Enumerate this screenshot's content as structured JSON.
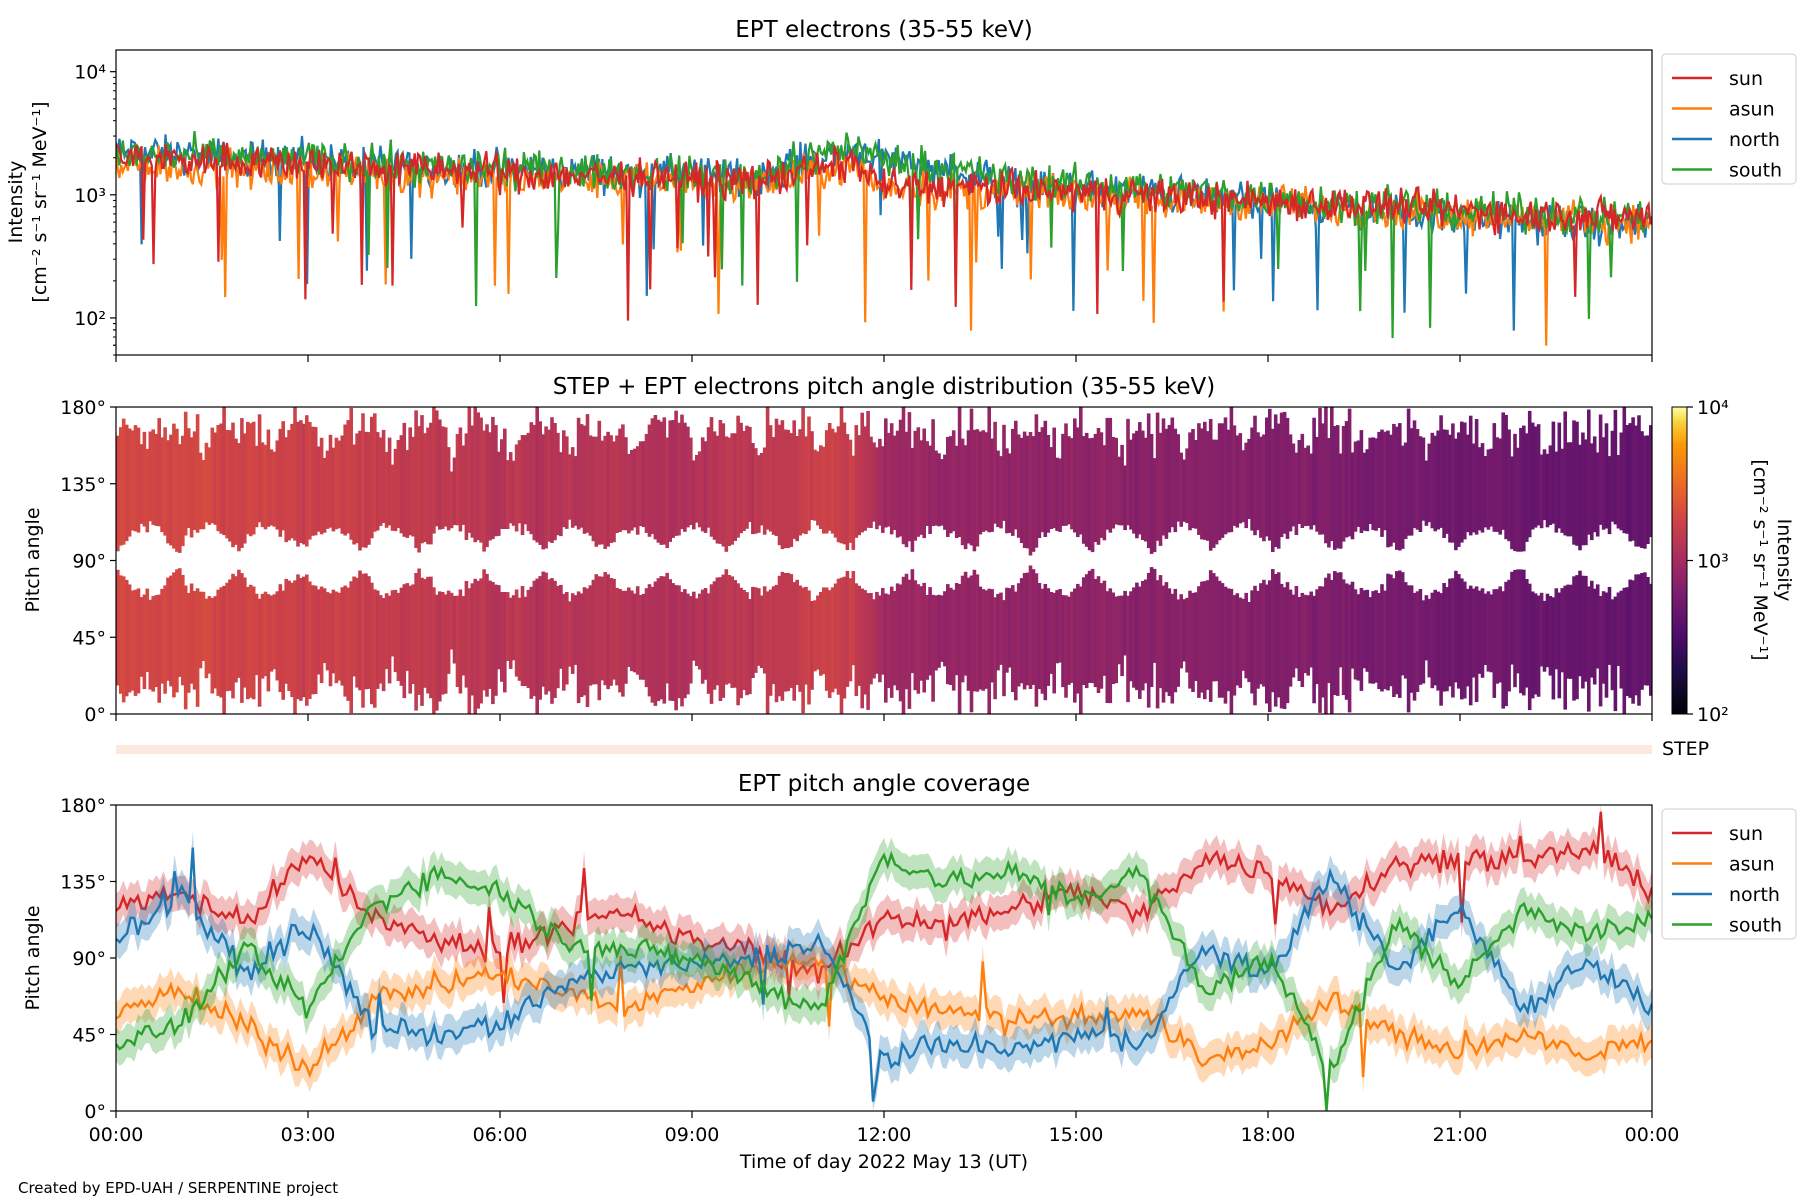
{
  "figure": {
    "credit": "Created by EPD-UAH / SERPENTINE project"
  },
  "chart_data": [
    {
      "type": "line",
      "title": "EPT electrons (35-55 keV)",
      "ylabel_line1": "Intensity",
      "ylabel_line2": "[cm⁻² s⁻¹ sr⁻¹ MeV⁻¹]",
      "yscale": "log",
      "ylim": [
        50,
        15000
      ],
      "yticks": [
        {
          "value": 100,
          "label": "10²"
        },
        {
          "value": 1000,
          "label": "10³"
        },
        {
          "value": 10000,
          "label": "10⁴"
        }
      ],
      "xlim": [
        "2022-05-13T00:00",
        "2022-05-14T00:00"
      ],
      "legend": "outside-right",
      "series": [
        {
          "name": "sun",
          "color": "#d62728",
          "x_hours": [
            0,
            2,
            4,
            6,
            8,
            10,
            11.5,
            12,
            14,
            16,
            18,
            20,
            22,
            24
          ],
          "values": [
            2000,
            1900,
            1700,
            1500,
            1400,
            1300,
            1800,
            1200,
            1100,
            1000,
            900,
            800,
            700,
            650
          ]
        },
        {
          "name": "asun",
          "color": "#ff7f0e",
          "x_hours": [
            0,
            2,
            4,
            6,
            8,
            10,
            11.5,
            12,
            14,
            16,
            18,
            20,
            22,
            24
          ],
          "values": [
            1700,
            1600,
            1500,
            1350,
            1300,
            1200,
            1700,
            1150,
            1050,
            950,
            850,
            750,
            650,
            600
          ]
        },
        {
          "name": "north",
          "color": "#1f77b4",
          "x_hours": [
            0,
            2,
            4,
            6,
            8,
            10,
            11.5,
            12,
            14,
            16,
            18,
            20,
            22,
            24
          ],
          "values": [
            2200,
            2000,
            1800,
            1600,
            1500,
            1400,
            2300,
            2000,
            1200,
            1050,
            850,
            700,
            600,
            550
          ]
        },
        {
          "name": "south",
          "color": "#2ca02c",
          "x_hours": [
            0,
            2,
            4,
            6,
            8,
            10,
            11.5,
            12,
            14,
            16,
            18,
            20,
            22,
            24
          ],
          "values": [
            2100,
            2000,
            1800,
            1600,
            1500,
            1400,
            2500,
            1900,
            1300,
            1150,
            950,
            800,
            700,
            650
          ]
        }
      ]
    },
    {
      "type": "heatmap",
      "title": "STEP + EPT electrons pitch angle distribution (35-55 keV)",
      "ylabel": "Pitch angle",
      "ylim": [
        0,
        180
      ],
      "yticks": [
        "0°",
        "45°",
        "90°",
        "135°",
        "180°"
      ],
      "xlim": [
        "2022-05-13T00:00",
        "2022-05-14T00:00"
      ],
      "colorbar": {
        "scale": "log",
        "range": [
          100,
          10000
        ],
        "ticks": [
          "10²",
          "10³",
          "10⁴"
        ],
        "label": "Intensity [cm⁻² s⁻¹ sr⁻¹ MeV⁻¹]",
        "label_line1": "Intensity",
        "label_line2": "[cm⁻² s⁻¹ sr⁻¹ MeV⁻¹]",
        "colormap": "inferno"
      },
      "segments_hours_intensity": [
        [
          0,
          2000
        ],
        [
          3,
          1700
        ],
        [
          6,
          1300
        ],
        [
          9,
          1200
        ],
        [
          11.5,
          1700
        ],
        [
          12,
          900
        ],
        [
          15,
          750
        ],
        [
          18,
          650
        ],
        [
          21,
          500
        ],
        [
          24,
          450
        ]
      ]
    },
    {
      "type": "bar",
      "label": "STEP",
      "color": "#fde8e0"
    },
    {
      "type": "line",
      "title": "EPT pitch angle coverage",
      "ylabel": "Pitch angle",
      "xlabel": "Time of day 2022 May 13 (UT)",
      "ylim": [
        0,
        180
      ],
      "yticks": [
        "0°",
        "45°",
        "90°",
        "135°",
        "180°"
      ],
      "xticks": [
        "00:00",
        "03:00",
        "06:00",
        "09:00",
        "12:00",
        "15:00",
        "18:00",
        "21:00",
        "00:00"
      ],
      "xlim": [
        "2022-05-13T00:00",
        "2022-05-14T00:00"
      ],
      "legend": "outside-right",
      "series": [
        {
          "name": "sun",
          "color": "#d62728",
          "x_hours": [
            0,
            1,
            2,
            3,
            4,
            5,
            6,
            7,
            8,
            9,
            10,
            11,
            12,
            13,
            14,
            15,
            16,
            17,
            18,
            19,
            20,
            21,
            22,
            23,
            24
          ],
          "values": [
            120,
            130,
            110,
            150,
            115,
            100,
            95,
            110,
            115,
            100,
            95,
            80,
            115,
            110,
            120,
            130,
            115,
            150,
            140,
            120,
            145,
            150,
            145,
            155,
            130
          ]
        },
        {
          "name": "asun",
          "color": "#ff7f0e",
          "x_hours": [
            0,
            1,
            2,
            3,
            4,
            5,
            6,
            7,
            8,
            9,
            10,
            11,
            12,
            13,
            14,
            15,
            16,
            17,
            18,
            19,
            20,
            21,
            22,
            23,
            24
          ],
          "values": [
            60,
            70,
            50,
            25,
            65,
            75,
            80,
            70,
            60,
            75,
            85,
            90,
            65,
            60,
            55,
            55,
            60,
            30,
            40,
            65,
            45,
            35,
            45,
            30,
            45
          ]
        },
        {
          "name": "north",
          "color": "#1f77b4",
          "x_hours": [
            0,
            1,
            2,
            3,
            4,
            5,
            6,
            7,
            8,
            9,
            10,
            11,
            12,
            13,
            14,
            15,
            16,
            17,
            18,
            19,
            20,
            21,
            22,
            23,
            24
          ],
          "values": [
            100,
            130,
            80,
            110,
            50,
            45,
            50,
            75,
            85,
            85,
            90,
            100,
            30,
            40,
            35,
            45,
            40,
            95,
            80,
            140,
            80,
            120,
            60,
            90,
            60
          ]
        },
        {
          "name": "south",
          "color": "#2ca02c",
          "x_hours": [
            0,
            1,
            2,
            3,
            4,
            5,
            6,
            7,
            8,
            9,
            10,
            11,
            12,
            13,
            14,
            15,
            16,
            17,
            18,
            19,
            20,
            21,
            22,
            23,
            24
          ],
          "values": [
            40,
            50,
            95,
            60,
            120,
            140,
            130,
            100,
            95,
            90,
            75,
            60,
            150,
            135,
            140,
            125,
            140,
            70,
            90,
            25,
            110,
            75,
            120,
            105,
            110
          ]
        }
      ]
    }
  ]
}
